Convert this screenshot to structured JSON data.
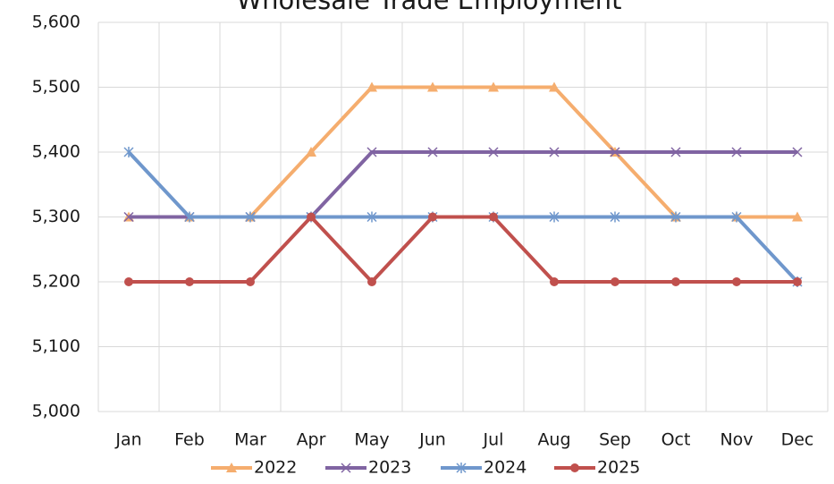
{
  "chart_data": {
    "type": "line",
    "title": "Wholesale Trade Employment",
    "categories": [
      "Jan",
      "Feb",
      "Mar",
      "Apr",
      "May",
      "Jun",
      "Jul",
      "Aug",
      "Sep",
      "Oct",
      "Nov",
      "Dec"
    ],
    "series": [
      {
        "name": "2022",
        "color": "#f5ad6e",
        "marker": "triangle",
        "values": [
          5300,
          5300,
          5300,
          5400,
          5500,
          5500,
          5500,
          5500,
          5400,
          5300,
          5300,
          5300
        ]
      },
      {
        "name": "2023",
        "color": "#8064a2",
        "marker": "cross",
        "values": [
          5300,
          5300,
          5300,
          5300,
          5400,
          5400,
          5400,
          5400,
          5400,
          5400,
          5400,
          5400
        ]
      },
      {
        "name": "2024",
        "color": "#6f97cc",
        "marker": "asterisk",
        "values": [
          5400,
          5300,
          5300,
          5300,
          5300,
          5300,
          5300,
          5300,
          5300,
          5300,
          5300,
          5200
        ]
      },
      {
        "name": "2025",
        "color": "#c0504d",
        "marker": "circle",
        "values": [
          5200,
          5200,
          5200,
          5300,
          5200,
          5300,
          5300,
          5200,
          5200,
          5200,
          5200,
          5200
        ]
      }
    ],
    "ylim": [
      5000,
      5600
    ],
    "yticks": [
      {
        "value": 5000,
        "label": "5,000"
      },
      {
        "value": 5100,
        "label": "5,100"
      },
      {
        "value": 5200,
        "label": "5,200"
      },
      {
        "value": 5300,
        "label": "5,300"
      },
      {
        "value": 5400,
        "label": "5,400"
      },
      {
        "value": 5500,
        "label": "5,500"
      },
      {
        "value": 5600,
        "label": "5,600"
      }
    ],
    "grid": true
  }
}
